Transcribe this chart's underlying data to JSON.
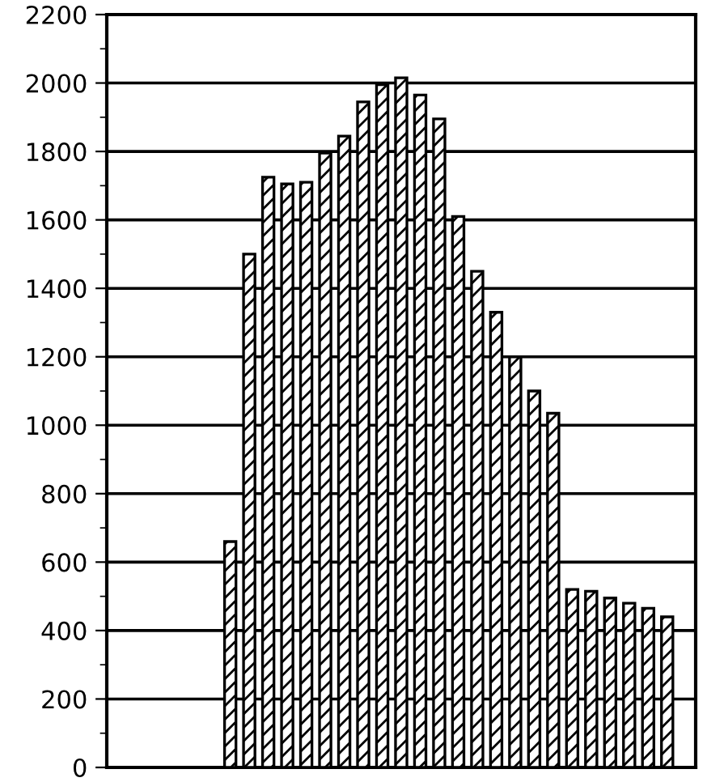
{
  "chart_data": {
    "type": "bar",
    "categories": [
      null,
      null,
      null,
      null,
      null,
      null,
      null,
      null,
      null,
      null,
      null,
      null,
      null,
      null,
      null,
      null,
      null,
      null,
      null,
      null,
      null,
      null,
      null,
      null,
      null,
      null,
      null,
      null,
      null,
      null,
      null
    ],
    "values": [
      null,
      null,
      null,
      null,
      null,
      null,
      660,
      1500,
      1725,
      1705,
      1710,
      1795,
      1845,
      1945,
      1995,
      2015,
      1965,
      1895,
      1610,
      1450,
      1330,
      1200,
      1100,
      1035,
      520,
      515,
      495,
      480,
      465,
      440,
      null
    ],
    "color": "#000000",
    "ylim": [
      0,
      2200
    ],
    "yticks": [
      0,
      {
        "value": 100,
        "label": null
      },
      200,
      {
        "value": 300,
        "label": null
      },
      400,
      {
        "value": 500,
        "label": null
      },
      600,
      {
        "value": 700,
        "label": null
      },
      800,
      {
        "value": 900,
        "label": null
      },
      1000,
      {
        "value": 1100,
        "label": null
      },
      1200,
      {
        "value": 1300,
        "label": null
      },
      1400,
      {
        "value": 1500,
        "label": null
      },
      1600,
      {
        "value": 1700,
        "label": null
      },
      1800,
      {
        "value": 1900,
        "label": null
      },
      2000,
      {
        "value": 2100,
        "label": null
      },
      2200
    ],
    "grid": "y"
  }
}
